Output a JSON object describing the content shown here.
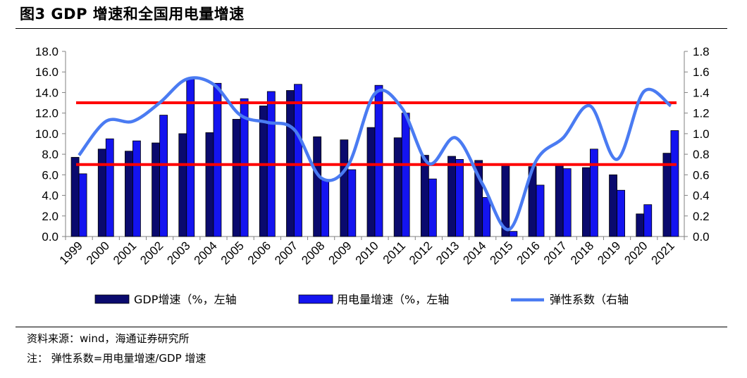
{
  "figure": {
    "title": "图3  GDP 增速和全国用电量增速",
    "source": "资料来源：wind，海通证券研究所",
    "note": "注：  弹性系数=用电量增速/GDP 增速"
  },
  "chart_data": {
    "type": "bar",
    "categories": [
      "1999",
      "2000",
      "2001",
      "2002",
      "2003",
      "2004",
      "2005",
      "2006",
      "2007",
      "2008",
      "2009",
      "2010",
      "2011",
      "2012",
      "2013",
      "2014",
      "2015",
      "2016",
      "2017",
      "2018",
      "2019",
      "2020",
      "2021"
    ],
    "series": [
      {
        "name": "GDP增速（%，左轴",
        "type": "bar",
        "axis": "left",
        "color": "#0a0a6e",
        "values": [
          7.7,
          8.5,
          8.3,
          9.1,
          10.0,
          10.1,
          11.4,
          12.7,
          14.2,
          9.7,
          9.4,
          10.6,
          9.6,
          7.9,
          7.8,
          7.4,
          7.0,
          6.8,
          6.9,
          6.7,
          6.0,
          2.2,
          8.1
        ]
      },
      {
        "name": "用电量增速（%，左轴",
        "type": "bar",
        "axis": "left",
        "color": "#1414f0",
        "values": [
          6.1,
          9.5,
          9.3,
          11.8,
          15.3,
          14.9,
          13.4,
          14.1,
          14.8,
          5.5,
          6.5,
          14.7,
          12.0,
          5.6,
          7.5,
          3.8,
          0.5,
          5.0,
          6.6,
          8.5,
          4.5,
          3.1,
          10.3
        ]
      },
      {
        "name": "弹性系数（右轴",
        "type": "line",
        "axis": "right",
        "color": "#4a7bf2",
        "values": [
          0.79,
          1.12,
          1.12,
          1.3,
          1.53,
          1.48,
          1.18,
          1.11,
          1.04,
          0.57,
          0.69,
          1.39,
          1.25,
          0.71,
          0.96,
          0.51,
          0.07,
          0.74,
          0.96,
          1.27,
          0.75,
          1.41,
          1.27
        ]
      }
    ],
    "reference_lines": [
      {
        "axis": "right",
        "value": 1.3,
        "color": "#ff0000"
      },
      {
        "axis": "right",
        "value": 0.7,
        "color": "#ff0000"
      }
    ],
    "left_axis": {
      "ylim": [
        0,
        18
      ],
      "ticks": [
        "0.0",
        "2.0",
        "4.0",
        "6.0",
        "8.0",
        "10.0",
        "12.0",
        "14.0",
        "16.0",
        "18.0"
      ]
    },
    "right_axis": {
      "ylim": [
        0,
        1.8
      ],
      "ticks": [
        "0.0",
        "0.2",
        "0.4",
        "0.6",
        "0.8",
        "1.0",
        "1.2",
        "1.4",
        "1.6",
        "1.8"
      ]
    },
    "grid": false,
    "legend": "bottom"
  }
}
